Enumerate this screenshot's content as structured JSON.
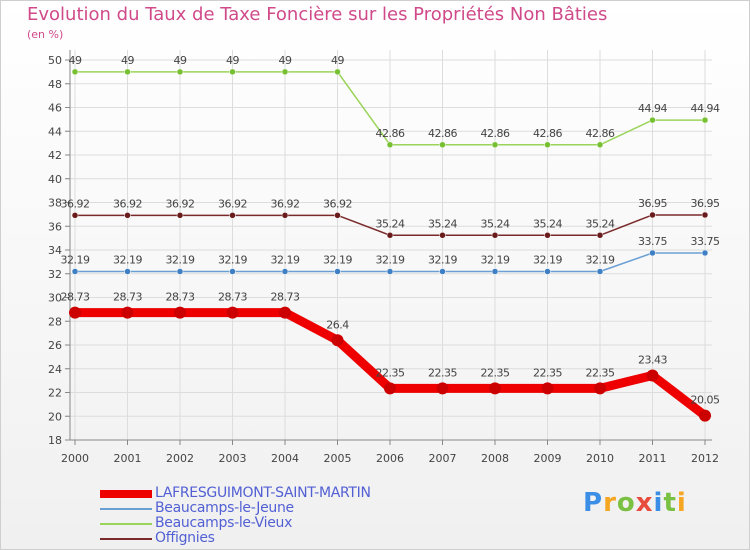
{
  "title": "Evolution du Taux de Taxe Foncière sur les Propriétés Non Bâties",
  "subtitle": "(en %)",
  "logo": {
    "text": "Proxiti",
    "colors": [
      "#3a8ee6",
      "#f5a623",
      "#7ac143",
      "#e84c3d",
      "#3a8ee6",
      "#7ac143",
      "#f5a623"
    ]
  },
  "chart_data": {
    "type": "line",
    "title": "Evolution du Taux de Taxe Foncière sur les Propriétés Non Bâties",
    "ylabel": "(en %)",
    "xlabel": "",
    "ylim": [
      18,
      50
    ],
    "yticks": [
      18,
      20,
      22,
      24,
      26,
      28,
      30,
      32,
      34,
      36,
      38,
      40,
      42,
      44,
      46,
      48,
      50
    ],
    "categories": [
      "2000",
      "2001",
      "2002",
      "2003",
      "2004",
      "2005",
      "2006",
      "2007",
      "2008",
      "2009",
      "2010",
      "2011",
      "2012"
    ],
    "grid": true,
    "legend_position": "bottom-left",
    "series": [
      {
        "name": "LAFRESGUIMONT-SAINT-MARTIN",
        "color": "#ee0000",
        "marker": "#cc0000",
        "thick": true,
        "values": [
          28.73,
          28.73,
          28.73,
          28.73,
          28.73,
          26.4,
          22.35,
          22.35,
          22.35,
          22.35,
          22.35,
          23.43,
          20.05
        ],
        "labels": [
          "28.73",
          "28.73",
          "28.73",
          "28.73",
          "28.73",
          "26.4",
          "22.35",
          "22.35",
          "22.35",
          "22.35",
          "22.35",
          "23.43",
          "20.05"
        ]
      },
      {
        "name": "Beaucamps-le-Jeune",
        "color": "#6a9fd4",
        "marker": "#3f7fc4",
        "thick": false,
        "values": [
          32.19,
          32.19,
          32.19,
          32.19,
          32.19,
          32.19,
          32.19,
          32.19,
          32.19,
          32.19,
          32.19,
          33.75,
          33.75
        ],
        "labels": [
          "32.19",
          "32.19",
          "32.19",
          "32.19",
          "32.19",
          "32.19",
          "32.19",
          "32.19",
          "32.19",
          "32.19",
          "32.19",
          "33.75",
          "33.75"
        ]
      },
      {
        "name": "Beaucamps-le-Vieux",
        "color": "#9ad45a",
        "marker": "#77c031",
        "thick": false,
        "values": [
          49,
          49,
          49,
          49,
          49,
          49,
          42.86,
          42.86,
          42.86,
          42.86,
          42.86,
          44.94,
          44.94
        ],
        "labels": [
          "49",
          "49",
          "49",
          "49",
          "49",
          "49",
          "42.86",
          "42.86",
          "42.86",
          "42.86",
          "42.86",
          "44.94",
          "44.94"
        ]
      },
      {
        "name": "Offignies",
        "color": "#7a2a2a",
        "marker": "#6a1c1c",
        "thick": false,
        "values": [
          36.92,
          36.92,
          36.92,
          36.92,
          36.92,
          36.92,
          35.24,
          35.24,
          35.24,
          35.24,
          35.24,
          36.95,
          36.95
        ],
        "labels": [
          "36.92",
          "36.92",
          "36.92",
          "36.92",
          "36.92",
          "36.92",
          "35.24",
          "35.24",
          "35.24",
          "35.24",
          "35.24",
          "36.95",
          "36.95"
        ]
      }
    ]
  }
}
